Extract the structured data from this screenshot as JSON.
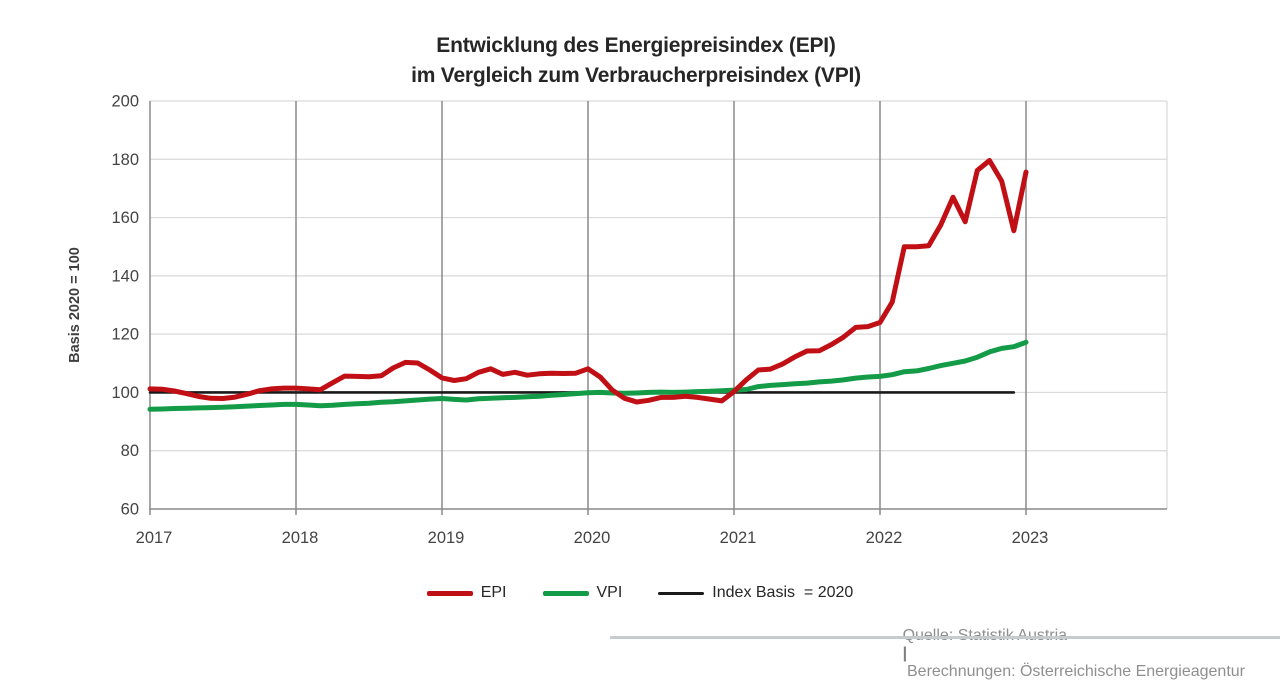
{
  "title": {
    "line1": "Entwicklung des Energiepreisindex (EPI)",
    "line2": "im Vergleich zum Verbraucherpreisindex (VPI)"
  },
  "source": {
    "quelle": "Quelle: Statistik Austria ",
    "separator": "|",
    "berechnungen": " Berechnungen: Österreichische Energieagentur"
  },
  "chart_data": {
    "type": "line",
    "title": "Entwicklung des Energiepreisindex (EPI) im Vergleich zum Verbraucherpreisindex (VPI)",
    "ylabel": "Basis 2020 = 100",
    "ylim": [
      60,
      200
    ],
    "ytick_step": 20,
    "ytick_labels": [
      "60",
      "80",
      "100",
      "120",
      "140",
      "160",
      "180",
      "200"
    ],
    "x_tick_labels": [
      "2017",
      "2018",
      "2019",
      "2020",
      "2021",
      "2022",
      "2023"
    ],
    "x_monthly_start": "2017-01",
    "x_monthly_end": "2023-01",
    "grid": {
      "horizontal": true,
      "vertical": true
    },
    "legend_position": "bottom",
    "series": [
      {
        "name": "EPI",
        "color": "#c01015",
        "values": [
          101.2,
          101.1,
          100.5,
          99.6,
          98.6,
          98.0,
          97.9,
          98.4,
          99.4,
          100.6,
          101.2,
          101.5,
          101.5,
          101.2,
          100.9,
          103.3,
          105.6,
          105.5,
          105.4,
          105.7,
          108.4,
          110.3,
          110.1,
          107.7,
          105.0,
          104.1,
          104.7,
          106.9,
          108.1,
          106.2,
          106.9,
          105.9,
          106.4,
          106.6,
          106.5,
          106.6,
          108.1,
          105.3,
          100.8,
          98.0,
          96.7,
          97.3,
          98.3,
          98.3,
          98.7,
          98.3,
          97.7,
          97.1,
          100.3,
          104.3,
          107.7,
          108.0,
          109.8,
          112.2,
          114.2,
          114.3,
          116.4,
          119.0,
          122.3,
          122.6,
          124.0,
          131.0,
          150.0,
          150.0,
          150.3,
          157.5,
          167.0,
          158.6,
          176.2,
          179.6,
          172.5,
          155.5,
          175.6
        ]
      },
      {
        "name": "VPI",
        "color": "#149b48",
        "values": [
          94.2,
          94.3,
          94.5,
          94.6,
          94.7,
          94.8,
          94.9,
          95.1,
          95.3,
          95.5,
          95.7,
          95.9,
          95.9,
          95.7,
          95.4,
          95.6,
          95.9,
          96.1,
          96.3,
          96.6,
          96.8,
          97.1,
          97.4,
          97.7,
          97.9,
          97.6,
          97.4,
          97.8,
          98.0,
          98.2,
          98.3,
          98.5,
          98.7,
          99.0,
          99.3,
          99.6,
          99.9,
          100.0,
          99.8,
          99.7,
          99.8,
          100.0,
          100.1,
          100.0,
          100.1,
          100.3,
          100.4,
          100.6,
          100.8,
          101.0,
          102.0,
          102.4,
          102.7,
          103.0,
          103.2,
          103.6,
          103.9,
          104.3,
          104.9,
          105.3,
          105.5,
          106.1,
          107.1,
          107.4,
          108.2,
          109.2,
          110.0,
          110.8,
          112.1,
          113.9,
          115.1,
          115.7,
          117.2
        ]
      },
      {
        "name": "Index Basis  = 2020",
        "color": "#1a1a1a",
        "constant": 100,
        "months": 72
      }
    ]
  }
}
